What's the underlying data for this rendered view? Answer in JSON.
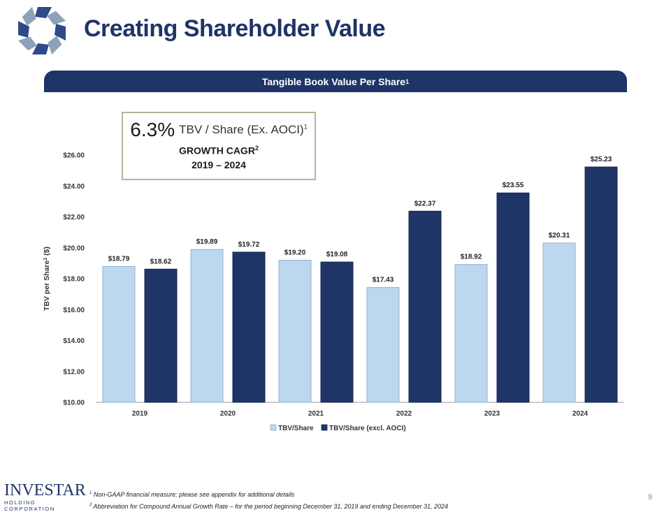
{
  "header": {
    "title": "Creating Shareholder Value"
  },
  "banner": {
    "text": "Tangible Book Value Per Share",
    "footnote_mark": "1"
  },
  "cagr_box": {
    "percent": "6.3%",
    "label": "TBV / Share (Ex. AOCI)",
    "label_mark": "1",
    "growth_label": "GROWTH CAGR",
    "growth_mark": "2",
    "period": "2019 – 2024"
  },
  "colors": {
    "brand_navy": "#1f3467",
    "light_bar": "#bdd7ee",
    "dark_bar": "#1f3467",
    "box_border": "#b9b29a"
  },
  "chart_data": {
    "type": "bar",
    "title": "Tangible Book Value Per Share",
    "ylabel": "TBV per Share",
    "ylabel_mark": "1",
    "ylabel_unit": "($)",
    "xlabel": "",
    "ylim": [
      10,
      26
    ],
    "y_ticks": [
      "$10.00",
      "$12.00",
      "$14.00",
      "$16.00",
      "$18.00",
      "$20.00",
      "$22.00",
      "$24.00",
      "$26.00"
    ],
    "y_tick_values": [
      10,
      12,
      14,
      16,
      18,
      20,
      22,
      24,
      26
    ],
    "categories": [
      "2019",
      "2020",
      "2021",
      "2022",
      "2023",
      "2024"
    ],
    "series": [
      {
        "name": "TBV/Share",
        "values": [
          18.79,
          19.89,
          19.2,
          17.43,
          18.92,
          20.31
        ],
        "labels": [
          "$18.79",
          "$19.89",
          "$19.20",
          "$17.43",
          "$18.92",
          "$20.31"
        ]
      },
      {
        "name": "TBV/Share (excl. AOCI)",
        "values": [
          18.62,
          19.72,
          19.08,
          22.37,
          23.55,
          25.23
        ],
        "labels": [
          "$18.62",
          "$19.72",
          "$19.08",
          "$22.37",
          "$23.55",
          "$25.23"
        ]
      }
    ],
    "legend": "bottom-center"
  },
  "footer": {
    "brand": "INVESTAR",
    "brand_sub": "HOLDING CORPORATION",
    "footnote1_mark": "1",
    "footnote1": "Non-GAAP financial measure; please see appendix for additional details",
    "footnote2_mark": "2",
    "footnote2": "Abbreviation for Compound Annual Growth Rate – for the period beginning December 31, 2019 and ending December 31, 2024",
    "page_number": "9"
  }
}
